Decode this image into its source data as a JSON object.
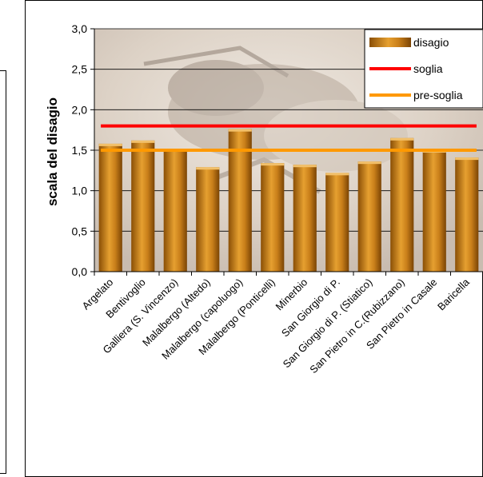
{
  "chart_data": {
    "type": "bar",
    "title": "",
    "xlabel": "",
    "ylabel": "scala del disagio",
    "ylim": [
      0,
      3
    ],
    "yticks": [
      "0,0",
      "0,5",
      "1,0",
      "1,5",
      "2,0",
      "2,5",
      "3,0"
    ],
    "yticks_values": [
      0,
      0.5,
      1,
      1.5,
      2,
      2.5,
      3
    ],
    "categories": [
      "Argelato",
      "Bentivoglio",
      "Galliera (S. Vincenzo)",
      "Malalbergo (Altedo)",
      "Malalbergo (capoluogo)",
      "Malalbergo (Ponticelli)",
      "Minerbio",
      "San Giorgio di P.",
      "San Giorgio di P. (Stiatico)",
      "San Pietro in C.(Rubizzano)",
      "San Pietro in Casale",
      "Baricella"
    ],
    "series": [
      {
        "name": "disagio",
        "type": "bar",
        "color": "#c8821c",
        "values": [
          1.58,
          1.62,
          1.51,
          1.29,
          1.76,
          1.34,
          1.32,
          1.22,
          1.36,
          1.65,
          1.5,
          1.41
        ]
      },
      {
        "name": "soglia",
        "type": "line",
        "color": "#ff0000",
        "value": 1.8
      },
      {
        "name": "pre-soglia",
        "type": "line",
        "color": "#ff9900",
        "value": 1.5
      }
    ],
    "legend_position": "top-right",
    "grid": true
  }
}
